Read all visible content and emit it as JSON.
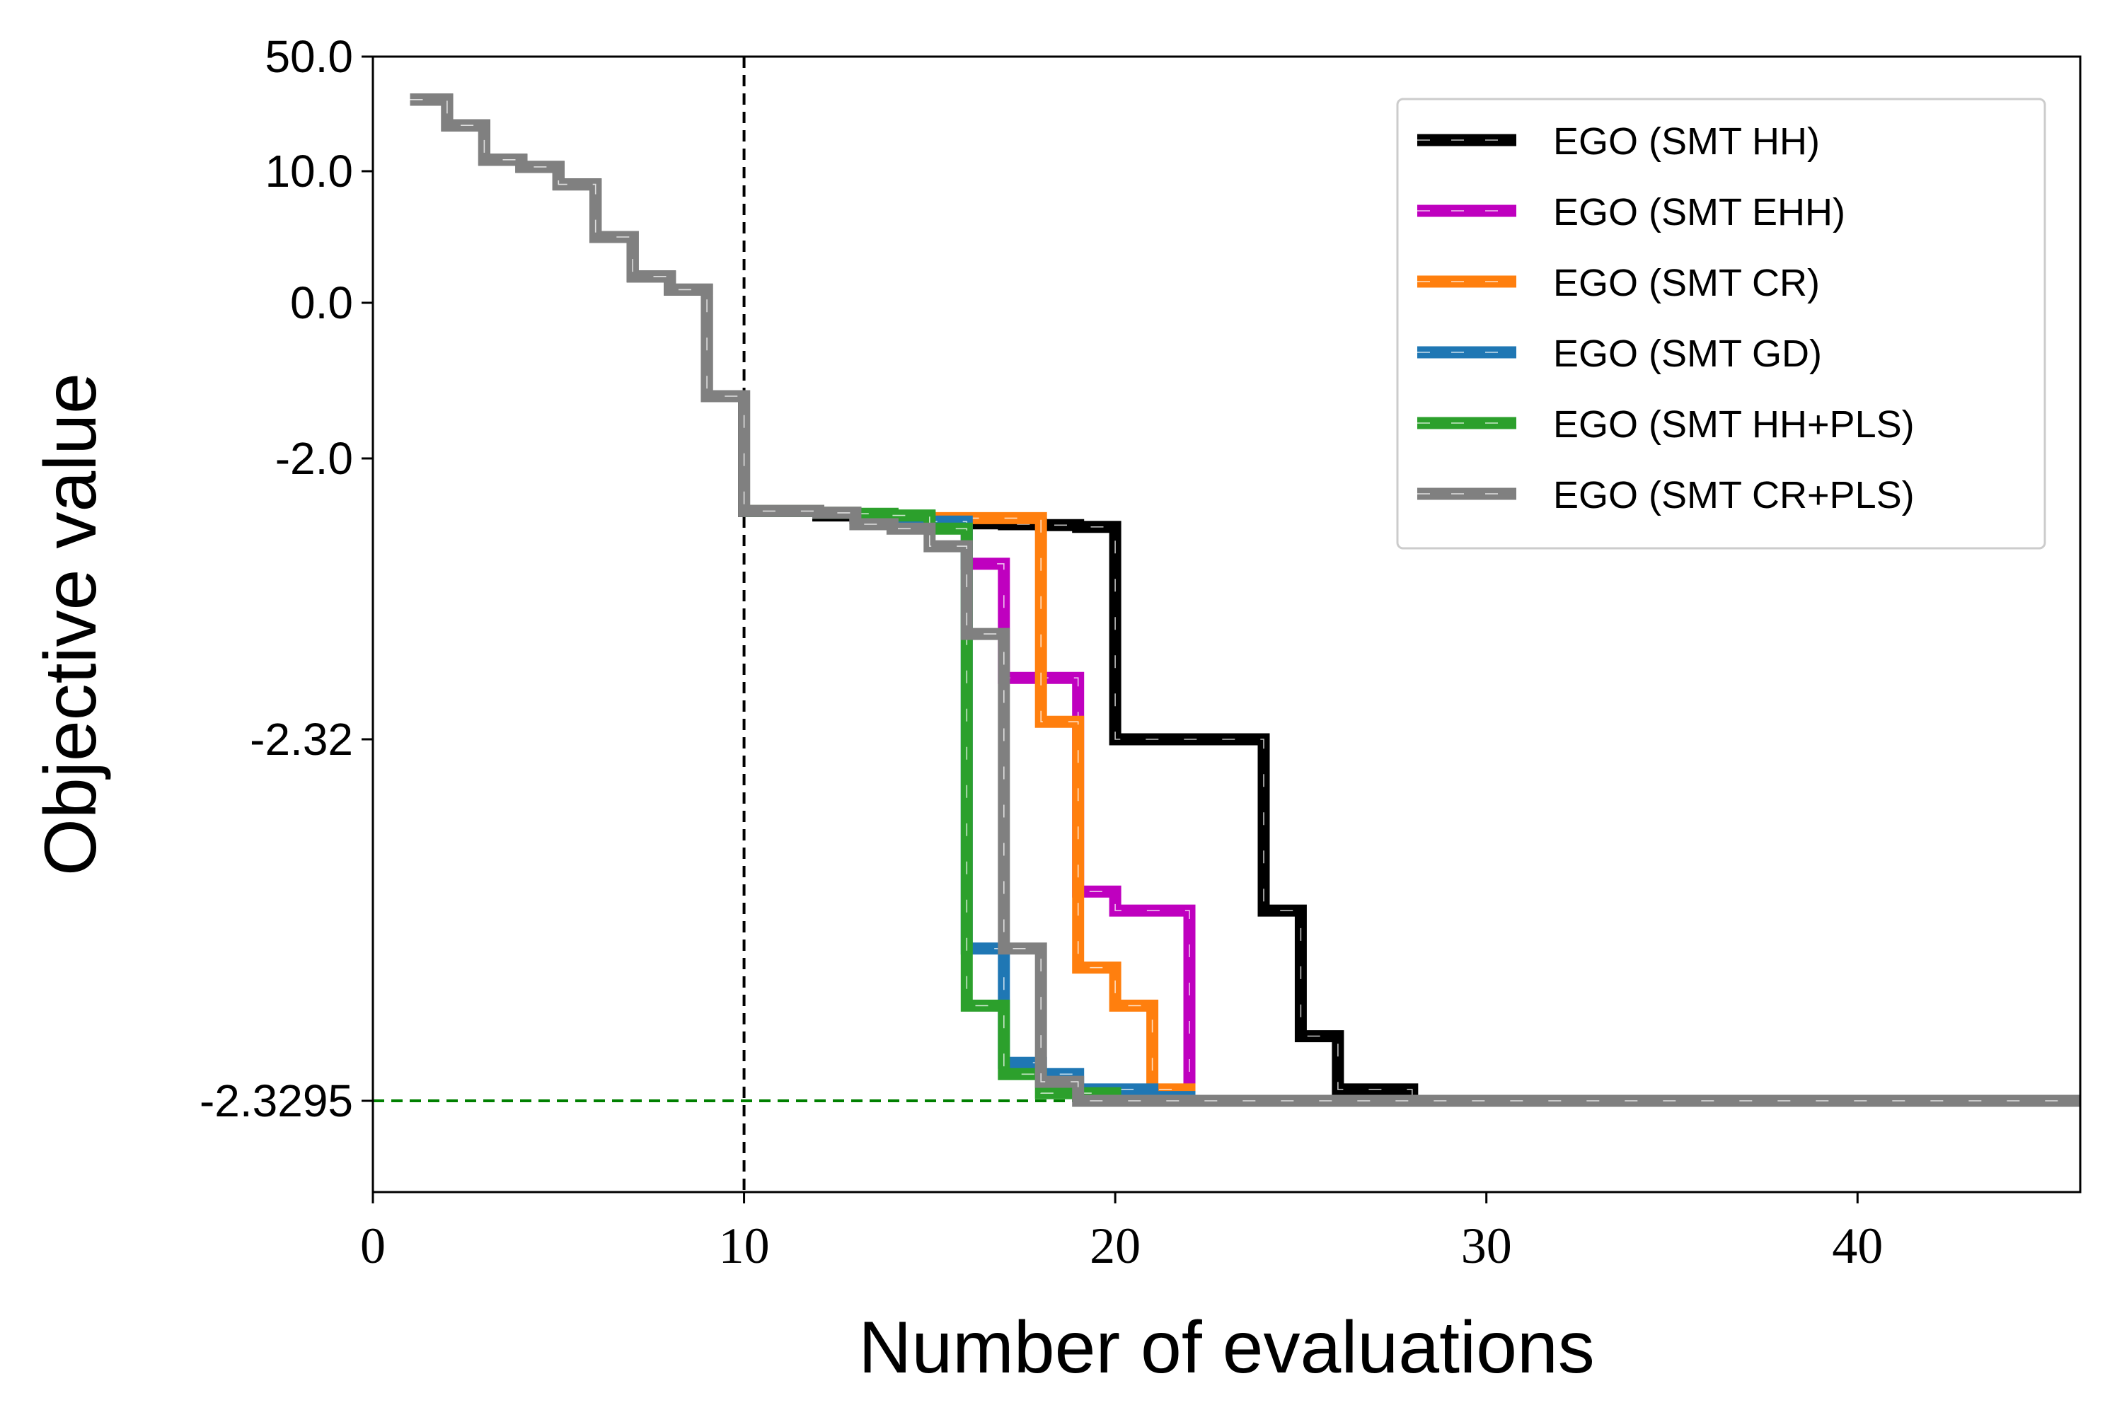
{
  "chart_data": {
    "type": "line",
    "xlabel": "Number of evaluations",
    "ylabel": "Objective value",
    "xlim": [
      0,
      46
    ],
    "x_ticks": [
      0,
      10,
      20,
      30,
      40
    ],
    "y_scale": "piecewise (non-linear)",
    "y_ticks": [
      {
        "value": 50.0,
        "label": "50.0"
      },
      {
        "value": 10.0,
        "label": "10.0"
      },
      {
        "value": 0.0,
        "label": "0.0"
      },
      {
        "value": -2.0,
        "label": "-2.0"
      },
      {
        "value": -2.32,
        "label": "-2.32"
      },
      {
        "value": -2.3295,
        "label": "-2.3295"
      }
    ],
    "ylim": [
      -2.33,
      50.0
    ],
    "reference_lines": [
      {
        "orientation": "vertical",
        "value": 10,
        "color": "#000000",
        "style": "dashed"
      },
      {
        "orientation": "horizontal",
        "value": -2.3295,
        "color": "#008000",
        "style": "dashed"
      }
    ],
    "legend_position": "top-right",
    "grid": false,
    "series": [
      {
        "name": "EGO (SMT HH)",
        "color": "#000000",
        "step": "post",
        "x": [
          1,
          2,
          3,
          4,
          5,
          6,
          7,
          8,
          9,
          10,
          11,
          12,
          13,
          14,
          15,
          16,
          17,
          18,
          19,
          20,
          21,
          22,
          23,
          24,
          25,
          26,
          27,
          28
        ],
        "y": [
          35,
          26,
          14,
          11.5,
          9,
          5,
          2,
          1,
          -1.2,
          -2.06,
          -2.06,
          -2.065,
          -2.068,
          -2.07,
          -2.072,
          -2.074,
          -2.075,
          -2.076,
          -2.078,
          -2.32,
          -2.32,
          -2.32,
          -2.32,
          -2.3245,
          -2.3278,
          -2.3292,
          -2.3292,
          -2.3295
        ]
      },
      {
        "name": "EGO (SMT EHH)",
        "color": "#bf00bf",
        "step": "post",
        "x": [
          10,
          11,
          12,
          13,
          14,
          15,
          16,
          17,
          18,
          19,
          20,
          21,
          22
        ],
        "y": [
          -2.06,
          -2.06,
          -2.062,
          -2.065,
          -2.068,
          -2.072,
          -2.12,
          -2.25,
          -2.25,
          -2.324,
          -2.3245,
          -2.3245,
          -2.3295
        ]
      },
      {
        "name": "EGO (SMT CR)",
        "color": "#ff7f0e",
        "step": "post",
        "x": [
          10,
          11,
          12,
          13,
          14,
          15,
          16,
          17,
          18,
          19,
          20,
          21,
          22
        ],
        "y": [
          -2.06,
          -2.06,
          -2.062,
          -2.064,
          -2.066,
          -2.068,
          -2.068,
          -2.068,
          -2.3,
          -2.326,
          -2.327,
          -2.3292,
          -2.3295
        ]
      },
      {
        "name": "EGO (SMT GD)",
        "color": "#1f77b4",
        "step": "post",
        "x": [
          10,
          11,
          12,
          13,
          14,
          15,
          16,
          17,
          18,
          19,
          20,
          21,
          22
        ],
        "y": [
          -2.06,
          -2.06,
          -2.062,
          -2.065,
          -2.068,
          -2.072,
          -2.3255,
          -2.3285,
          -2.3288,
          -2.3292,
          -2.3292,
          -2.3294,
          -2.3295
        ]
      },
      {
        "name": "EGO (SMT HH+PLS)",
        "color": "#2ca02c",
        "step": "post",
        "x": [
          10,
          11,
          12,
          13,
          14,
          15,
          16,
          17,
          18,
          19,
          20,
          21,
          22
        ],
        "y": [
          -2.06,
          -2.06,
          -2.062,
          -2.063,
          -2.065,
          -2.08,
          -2.327,
          -2.3288,
          -2.3293,
          -2.3293,
          -2.3295,
          -2.3295,
          -2.3295
        ]
      },
      {
        "name": "EGO (SMT CR+PLS)",
        "color": "#808080",
        "step": "post",
        "x": [
          1,
          2,
          3,
          4,
          5,
          6,
          7,
          8,
          9,
          10,
          11,
          12,
          13,
          14,
          15,
          16,
          17,
          18,
          19,
          20,
          21,
          22
        ],
        "y": [
          35,
          26,
          14,
          11.5,
          9,
          5,
          2,
          1,
          -1.2,
          -2.06,
          -2.06,
          -2.062,
          -2.075,
          -2.08,
          -2.1,
          -2.2,
          -2.3255,
          -2.329,
          -2.3295,
          -2.3295,
          -2.3295,
          -2.3295
        ]
      }
    ],
    "series_extend_to_x": 46
  }
}
